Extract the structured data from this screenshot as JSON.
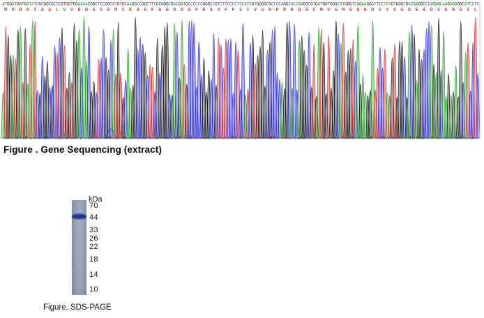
{
  "figure1": {
    "caption": "Figure . Gene Sequencing (extract)",
    "chromatogram": {
      "nucleotide_sequence": "ATGGATGATGATATCGCGGCGCTCGTGGTGGACAACGGCTCCGGCATGTGCAAGGCCGGCTTCGCGGGCGACGATGCCCCCCGGGCCGTCTTCCCCTCCATCGTGGGGCGCCCCAGGCACCAGGGCGTGATGGTGGGCATGGGTCAGAAGGATTCCTATGTGGGCGACGAGGCCCAGAGCAAGAGAGGCATCCTC",
      "amino_acid_sequence": "MDDDIAALVVDNGSGMCKAGFAGDDAPRAVFPSIVGRPRHQGVMVGMGQKDSYVGDEAQSKRGIL",
      "base_colors": {
        "A": "#1ea11e",
        "C": "#2727dd",
        "G": "#141414",
        "T": "#dd2424"
      },
      "amino_acid_color": "#e84444"
    }
  },
  "figure2": {
    "caption": "Figure. SDS-PAGE",
    "gel": {
      "unit_label": "kDa",
      "markers": [
        "70",
        "44",
        "33",
        "26",
        "22",
        "18",
        "14",
        "10"
      ],
      "band_kda": "44",
      "lane_color": "#98a2b6",
      "band_color": "#24398c"
    }
  }
}
